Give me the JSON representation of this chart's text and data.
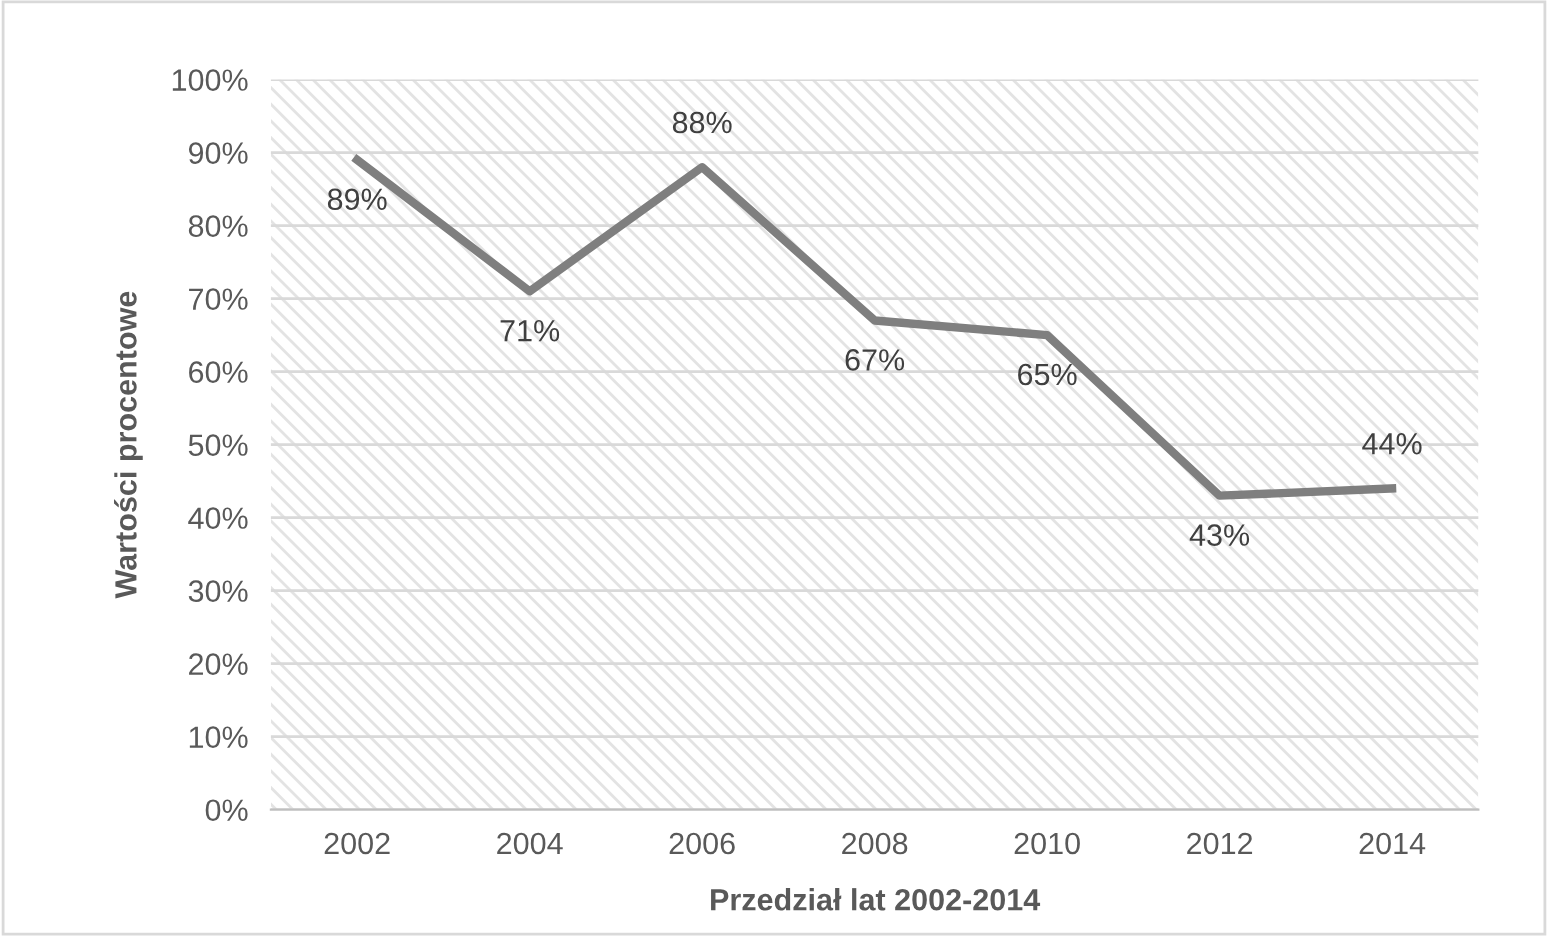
{
  "chart_data": {
    "type": "line",
    "xlabel": "Przedział lat 2002-2014",
    "ylabel": "Wartości procentowe",
    "categories": [
      "2002",
      "2004",
      "2006",
      "2008",
      "2010",
      "2012",
      "2014"
    ],
    "series": [
      {
        "color": "#7f7f7f",
        "values": [
          89,
          71,
          88,
          67,
          65,
          43,
          44
        ],
        "value_labels": [
          "89%",
          "71%",
          "88%",
          "67%",
          "65%",
          "43%",
          "44%"
        ]
      }
    ],
    "ylim": [
      0,
      100
    ],
    "yticks": [
      {
        "value": 0,
        "label": "0%"
      },
      {
        "value": 10,
        "label": "10%"
      },
      {
        "value": 20,
        "label": "20%"
      },
      {
        "value": 30,
        "label": "30%"
      },
      {
        "value": 40,
        "label": "40%"
      },
      {
        "value": 50,
        "label": "50%"
      },
      {
        "value": 60,
        "label": "60%"
      },
      {
        "value": 70,
        "label": "70%"
      },
      {
        "value": 80,
        "label": "80%"
      },
      {
        "value": 90,
        "label": "90%"
      },
      {
        "value": 100,
        "label": "100%"
      }
    ],
    "grid": "y",
    "marker": "none",
    "line_style": "solid"
  }
}
